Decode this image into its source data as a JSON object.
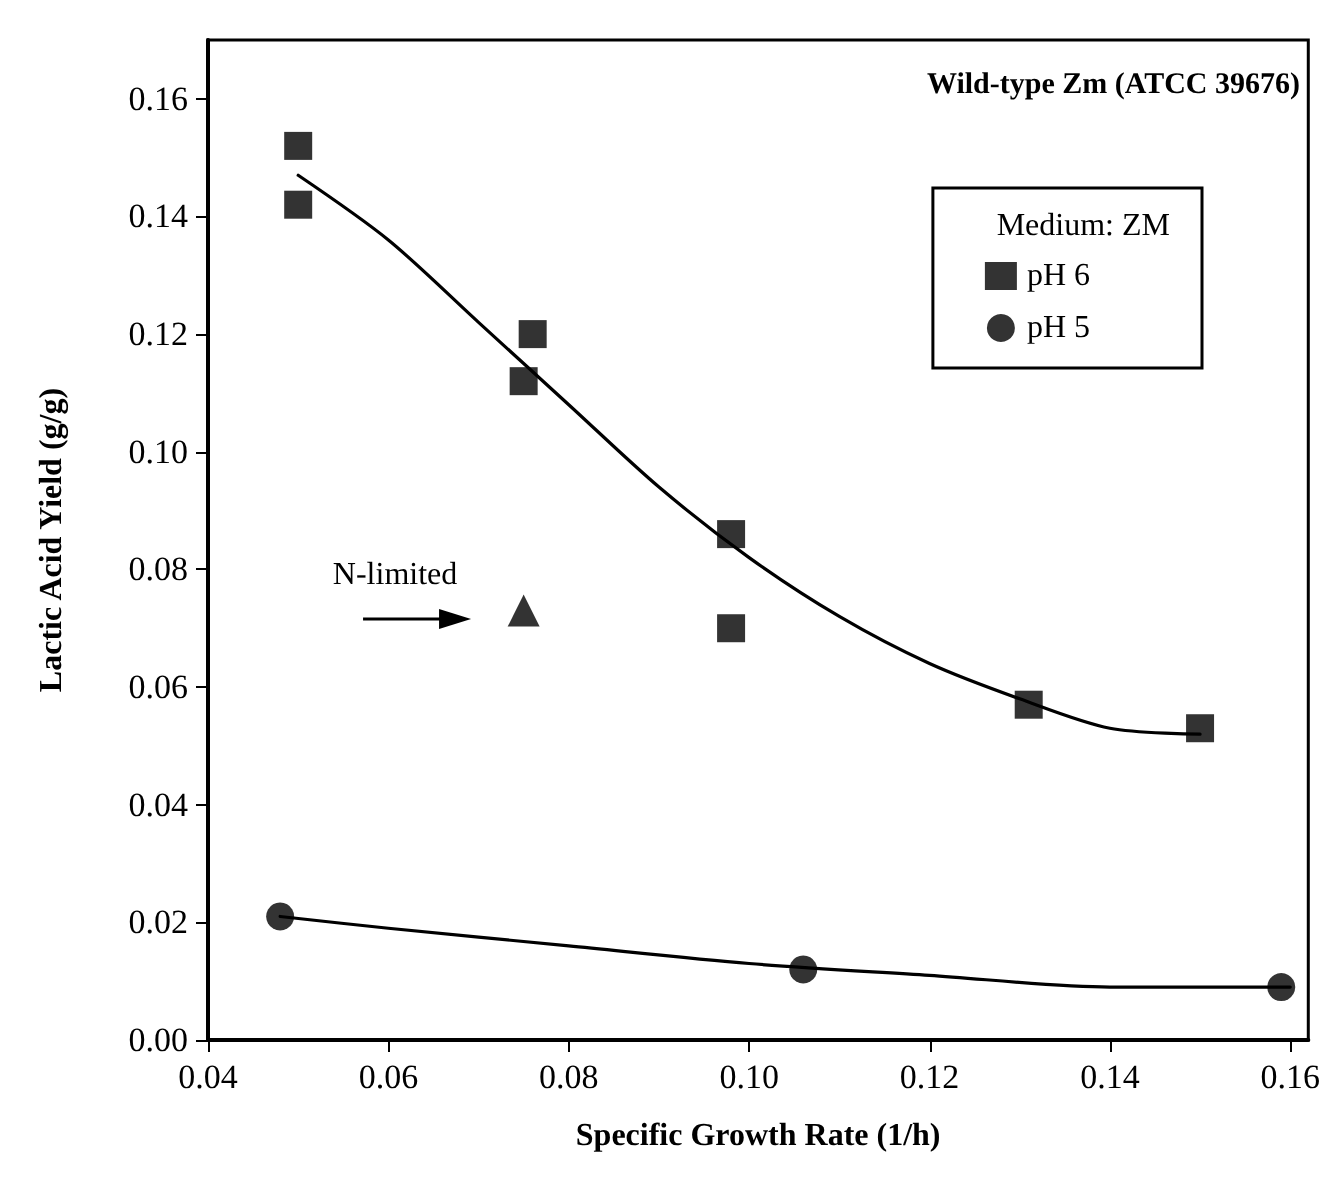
{
  "chart_data": {
    "type": "scatter",
    "title": "Wild-type Zm (ATCC 39676)",
    "xlabel": "Specific Growth Rate (1/h)",
    "ylabel": "Lactic Acid Yield (g/g)",
    "legend_title": "Medium: ZM",
    "legend": "top right",
    "grid": false,
    "xlim": [
      0.04,
      0.162
    ],
    "xticks": [
      0.04,
      0.06,
      0.08,
      {
        "value": 0.1,
        "label": "0.10"
      },
      0.12,
      0.14,
      0.16
    ],
    "ylim": [
      0,
      0.17
    ],
    "yticks": [
      {
        "value": 0,
        "label": "0.00"
      },
      0.02,
      0.04,
      0.06,
      0.08,
      {
        "value": 0.1,
        "label": "0.10"
      },
      0.12,
      0.14,
      0.16
    ],
    "annotations": [
      "N-limited"
    ],
    "series": [
      {
        "name": "pH 6",
        "color": "#000000",
        "marker": "square",
        "x": [
          0.05,
          0.05,
          0.076,
          0.075,
          0.098,
          0.098,
          0.131,
          0.15
        ],
        "values": [
          0.152,
          0.142,
          0.12,
          0.112,
          0.086,
          0.07,
          0.057,
          0.053
        ]
      },
      {
        "name": "pH 5",
        "color": "#000000",
        "marker": "circle",
        "x": [
          0.048,
          0.106,
          0.159
        ],
        "values": [
          0.021,
          0.012,
          0.009
        ]
      },
      {
        "color": "#000000",
        "marker": "triangle",
        "x": [
          0.075
        ],
        "values": [
          0.073
        ]
      },
      {
        "type": "line",
        "color": "#000000",
        "marker": "none",
        "line_style": "solid",
        "x": [
          0.05,
          0.06,
          0.07,
          0.08,
          0.09,
          0.1,
          0.11,
          0.12,
          0.13,
          0.14,
          0.15
        ],
        "values": [
          0.147,
          0.136,
          0.122,
          0.108,
          0.094,
          0.082,
          0.072,
          0.064,
          0.058,
          0.053,
          0.052
        ]
      },
      {
        "type": "line",
        "color": "#000000",
        "marker": "none",
        "line_style": "solid",
        "x": [
          0.048,
          0.06,
          0.08,
          0.1,
          0.12,
          0.14,
          0.16
        ],
        "values": [
          0.021,
          0.019,
          0.016,
          0.013,
          0.011,
          0.009,
          0.009
        ]
      }
    ]
  }
}
